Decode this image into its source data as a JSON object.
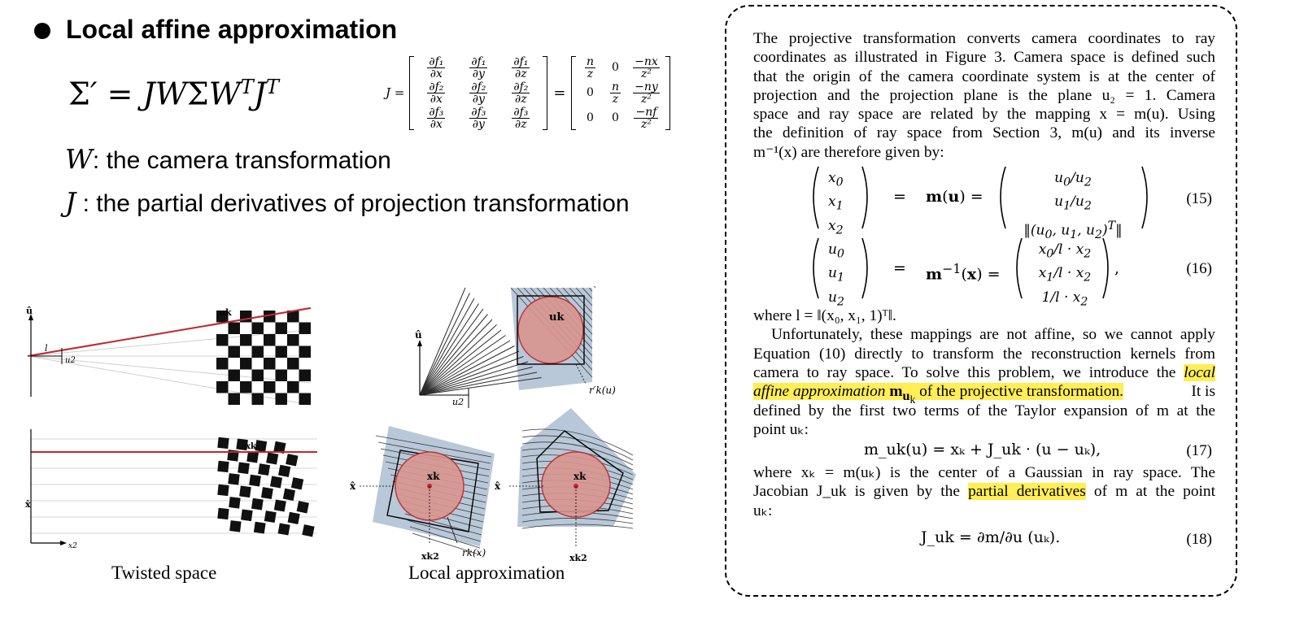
{
  "slide": {
    "heading": "Local affine approximation",
    "equation": "Σ′ = JWΣW^T J^T",
    "jacobian_label": "J =",
    "jacobian_matrix": [
      [
        "∂f₁/∂x",
        "∂f₁/∂y",
        "∂f₁/∂z"
      ],
      [
        "∂f₂/∂x",
        "∂f₂/∂y",
        "∂f₂/∂z"
      ],
      [
        "∂f₃/∂x",
        "∂f₃/∂y",
        "∂f₃/∂z"
      ]
    ],
    "jacobian_values": [
      [
        "n/z",
        "0",
        "−nx/z²"
      ],
      [
        "0",
        "n/z",
        "−ny/z²"
      ],
      [
        "0",
        "0",
        "−nf/z²"
      ]
    ],
    "def_w_symbol": "W",
    "def_w_text": ": the camera transformation",
    "def_j_symbol": "J",
    "def_j_text": " : the partial derivatives of projection transformation",
    "caption_left": "Twisted space",
    "caption_right": "Local approximation"
  },
  "figure_labels": {
    "u_hat": "û",
    "x_hat": "x̂",
    "u_k": "uk",
    "x_k": "xk",
    "x_k2": "xk2",
    "u2": "u2",
    "x2": "x2",
    "l": "l",
    "r_prime": "r′k(u)",
    "r_k": "rk(x)"
  },
  "paper": {
    "lines": [
      "The projective transformation converts camera coordinates to ray",
      "coordinates as illustrated in Figure 3. Camera space is defined such",
      "that the origin of the camera coordinate system is at the center of",
      "projection and the projection plane is the plane u₂ = 1. Camera",
      "space and ray space are related by the mapping x = m(u). Using",
      "the definition of ray space from Section 3, m(u) and its inverse",
      "m⁻¹(x) are therefore given by:"
    ],
    "eq15_number": "(15)",
    "eq16_number": "(16)",
    "eq17_number": "(17)",
    "eq18_number": "(18)",
    "where_l": "where l = ‖(x₀, x₁, 1)ᵀ‖.",
    "para2_lines": [
      "Unfortunately, these mappings are not affine, so we cannot apply",
      "Equation (10) directly to transform the reconstruction kernels from",
      "camera to ray space. To solve this problem, we introduce the"
    ],
    "highlight1_a": "local",
    "highlight1_b": "affine approximation",
    "highlight1_c": "of the projective transformation.",
    "after_hl1": "It is",
    "line_taylor": "defined by the first two terms of the Taylor expansion of m at the",
    "point_uk": "point uₖ:",
    "eq17": "m_uk(u) = xₖ + J_uk · (u − uₖ),",
    "where_xk": "where xₖ = m(uₖ) is the center of a Gaussian in ray space. The",
    "jac_pre": "Jacobian J_uk is given by the",
    "highlight2": "partial derivatives",
    "jac_post": "of m at the point",
    "uk_colon": "uₖ:",
    "eq18": "J_uk = ∂m/∂u (uₖ)."
  },
  "colors": {
    "highlight": "#ffee55",
    "red_line": "#c0272d",
    "ellipse_fill": "#d9968f",
    "grid_blue": "#b8c8d8"
  }
}
